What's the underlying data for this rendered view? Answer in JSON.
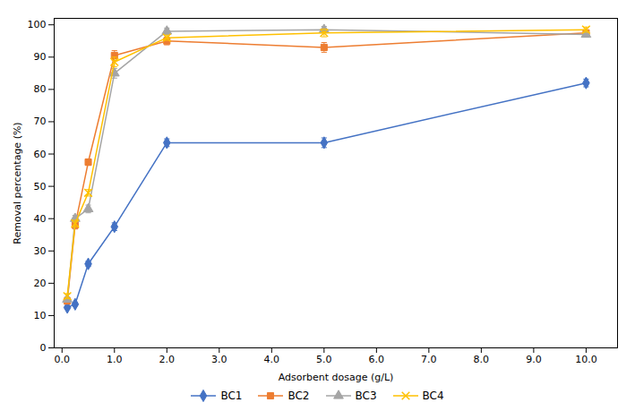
{
  "chart_data": {
    "type": "line",
    "xlabel": "Adsorbent dosage (g/L)",
    "ylabel": "Removal percentage (%)",
    "x": [
      0.1,
      0.25,
      0.5,
      1.0,
      2.0,
      5.0,
      10.0
    ],
    "series": [
      {
        "name": "BC1",
        "color": "#4472C4",
        "marker": "diamond",
        "values": [
          12.5,
          13.5,
          26.0,
          37.5,
          63.5,
          63.5,
          82.0
        ],
        "yerr": [
          0.5,
          0.5,
          0.8,
          1.2,
          1.2,
          1.5,
          1.2
        ]
      },
      {
        "name": "BC2",
        "color": "#ED7D31",
        "marker": "square",
        "values": [
          14.5,
          38.0,
          57.5,
          90.5,
          95.0,
          93.0,
          97.5
        ],
        "yerr": [
          0.8,
          1.2,
          1.0,
          1.5,
          1.2,
          1.5,
          0.8
        ]
      },
      {
        "name": "BC3",
        "color": "#A5A5A5",
        "marker": "triangle",
        "values": [
          15.0,
          40.0,
          43.0,
          85.0,
          98.0,
          98.5,
          97.0
        ],
        "yerr": [
          0.8,
          1.0,
          1.2,
          1.5,
          1.0,
          1.0,
          0.8
        ]
      },
      {
        "name": "BC4",
        "color": "#FFC000",
        "marker": "x",
        "values": [
          16.0,
          38.5,
          48.0,
          88.5,
          96.0,
          97.5,
          98.5
        ],
        "yerr": [
          0.8,
          1.0,
          1.0,
          1.5,
          0.8,
          1.2,
          0.8
        ]
      }
    ],
    "xlim": [
      -0.15,
      10.6
    ],
    "ylim": [
      0,
      102
    ],
    "xticks": [
      {
        "value": 0.0,
        "label": "0.0"
      },
      {
        "value": 1.0,
        "label": "1.0"
      },
      {
        "value": 2.0,
        "label": "2.0"
      },
      {
        "value": 3.0,
        "label": "3.0"
      },
      {
        "value": 4.0,
        "label": "4.0"
      },
      {
        "value": 5.0,
        "label": "5.0"
      },
      {
        "value": 6.0,
        "label": "6.0"
      },
      {
        "value": 7.0,
        "label": "7.0"
      },
      {
        "value": 8.0,
        "label": "8.0"
      },
      {
        "value": 9.0,
        "label": "9.0"
      },
      {
        "value": 10.0,
        "label": "10.0"
      }
    ],
    "yticks": [
      0,
      10,
      20,
      30,
      40,
      50,
      60,
      70,
      80,
      90,
      100
    ],
    "grid": false,
    "legend": "bottom"
  }
}
